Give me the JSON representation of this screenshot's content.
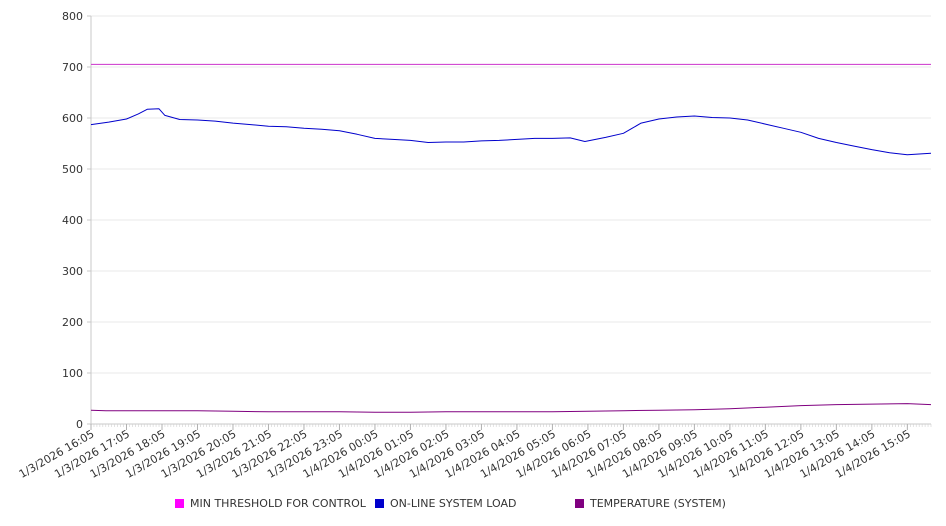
{
  "chart_data": {
    "type": "line",
    "ylim": [
      0,
      800
    ],
    "yticks": [
      0,
      100,
      200,
      300,
      400,
      500,
      600,
      700,
      800
    ],
    "xlim": [
      "1/3/2026 16:05",
      "1/4/2026 15:45"
    ],
    "xticks": [
      "1/3/2026 16:05",
      "1/3/2026 17:05",
      "1/3/2026 18:05",
      "1/3/2026 19:05",
      "1/3/2026 20:05",
      "1/3/2026 21:05",
      "1/3/2026 22:05",
      "1/3/2026 23:05",
      "1/4/2026 00:05",
      "1/4/2026 01:05",
      "1/4/2026 02:05",
      "1/4/2026 03:05",
      "1/4/2026 04:05",
      "1/4/2026 05:05",
      "1/4/2026 06:05",
      "1/4/2026 07:05",
      "1/4/2026 08:05",
      "1/4/2026 09:05",
      "1/4/2026 10:05",
      "1/4/2026 11:05",
      "1/4/2026 12:05",
      "1/4/2026 13:05",
      "1/4/2026 14:05",
      "1/4/2026 15:05"
    ],
    "grid": true,
    "legend": "bottom",
    "series": [
      {
        "name": "MIN THRESHOLD FOR CONTROL",
        "color": "#cc33cc",
        "points": [
          [
            "1/3/2026 16:05",
            705
          ],
          [
            "1/4/2026 15:45",
            705
          ]
        ]
      },
      {
        "name": "ON-LINE SYSTEM LOAD",
        "color": "#0000cc",
        "points": [
          [
            "1/3/2026 16:05",
            587
          ],
          [
            "1/3/2026 16:35",
            592
          ],
          [
            "1/3/2026 17:05",
            598
          ],
          [
            "1/3/2026 17:25",
            608
          ],
          [
            "1/3/2026 17:40",
            617
          ],
          [
            "1/3/2026 18:00",
            618
          ],
          [
            "1/3/2026 18:10",
            605
          ],
          [
            "1/3/2026 18:35",
            597
          ],
          [
            "1/3/2026 19:05",
            596
          ],
          [
            "1/3/2026 19:35",
            594
          ],
          [
            "1/3/2026 20:05",
            590
          ],
          [
            "1/3/2026 20:35",
            587
          ],
          [
            "1/3/2026 21:05",
            584
          ],
          [
            "1/3/2026 21:35",
            583
          ],
          [
            "1/3/2026 22:05",
            580
          ],
          [
            "1/3/2026 22:35",
            578
          ],
          [
            "1/3/2026 23:05",
            575
          ],
          [
            "1/3/2026 23:35",
            568
          ],
          [
            "1/4/2026 00:05",
            560
          ],
          [
            "1/4/2026 00:35",
            558
          ],
          [
            "1/4/2026 01:05",
            556
          ],
          [
            "1/4/2026 01:35",
            552
          ],
          [
            "1/4/2026 02:05",
            553
          ],
          [
            "1/4/2026 02:35",
            553
          ],
          [
            "1/4/2026 03:05",
            555
          ],
          [
            "1/4/2026 03:35",
            556
          ],
          [
            "1/4/2026 04:05",
            558
          ],
          [
            "1/4/2026 04:35",
            560
          ],
          [
            "1/4/2026 05:05",
            560
          ],
          [
            "1/4/2026 05:35",
            561
          ],
          [
            "1/4/2026 06:00",
            554
          ],
          [
            "1/4/2026 06:35",
            562
          ],
          [
            "1/4/2026 07:05",
            570
          ],
          [
            "1/4/2026 07:35",
            590
          ],
          [
            "1/4/2026 08:05",
            598
          ],
          [
            "1/4/2026 08:35",
            602
          ],
          [
            "1/4/2026 09:05",
            604
          ],
          [
            "1/4/2026 09:35",
            601
          ],
          [
            "1/4/2026 10:05",
            600
          ],
          [
            "1/4/2026 10:35",
            596
          ],
          [
            "1/4/2026 11:05",
            588
          ],
          [
            "1/4/2026 11:35",
            580
          ],
          [
            "1/4/2026 12:05",
            572
          ],
          [
            "1/4/2026 12:35",
            560
          ],
          [
            "1/4/2026 13:05",
            552
          ],
          [
            "1/4/2026 13:35",
            545
          ],
          [
            "1/4/2026 14:05",
            538
          ],
          [
            "1/4/2026 14:35",
            532
          ],
          [
            "1/4/2026 15:05",
            528
          ],
          [
            "1/4/2026 15:45",
            531
          ]
        ]
      },
      {
        "name": "TEMPERATURE (SYSTEM)",
        "color": "#800080",
        "points": [
          [
            "1/3/2026 16:05",
            27
          ],
          [
            "1/3/2026 16:30",
            26
          ],
          [
            "1/3/2026 17:05",
            26
          ],
          [
            "1/3/2026 18:05",
            26
          ],
          [
            "1/3/2026 19:05",
            26
          ],
          [
            "1/3/2026 20:05",
            25
          ],
          [
            "1/3/2026 21:05",
            24
          ],
          [
            "1/3/2026 22:05",
            24
          ],
          [
            "1/3/2026 23:05",
            24
          ],
          [
            "1/4/2026 00:05",
            23
          ],
          [
            "1/4/2026 01:05",
            23
          ],
          [
            "1/4/2026 02:05",
            24
          ],
          [
            "1/4/2026 03:05",
            24
          ],
          [
            "1/4/2026 04:05",
            24
          ],
          [
            "1/4/2026 05:05",
            24
          ],
          [
            "1/4/2026 06:05",
            25
          ],
          [
            "1/4/2026 07:05",
            26
          ],
          [
            "1/4/2026 08:05",
            27
          ],
          [
            "1/4/2026 09:05",
            28
          ],
          [
            "1/4/2026 10:05",
            30
          ],
          [
            "1/4/2026 11:05",
            33
          ],
          [
            "1/4/2026 12:05",
            36
          ],
          [
            "1/4/2026 13:05",
            38
          ],
          [
            "1/4/2026 14:05",
            39
          ],
          [
            "1/4/2026 15:05",
            40
          ],
          [
            "1/4/2026 15:45",
            38
          ]
        ]
      }
    ]
  }
}
